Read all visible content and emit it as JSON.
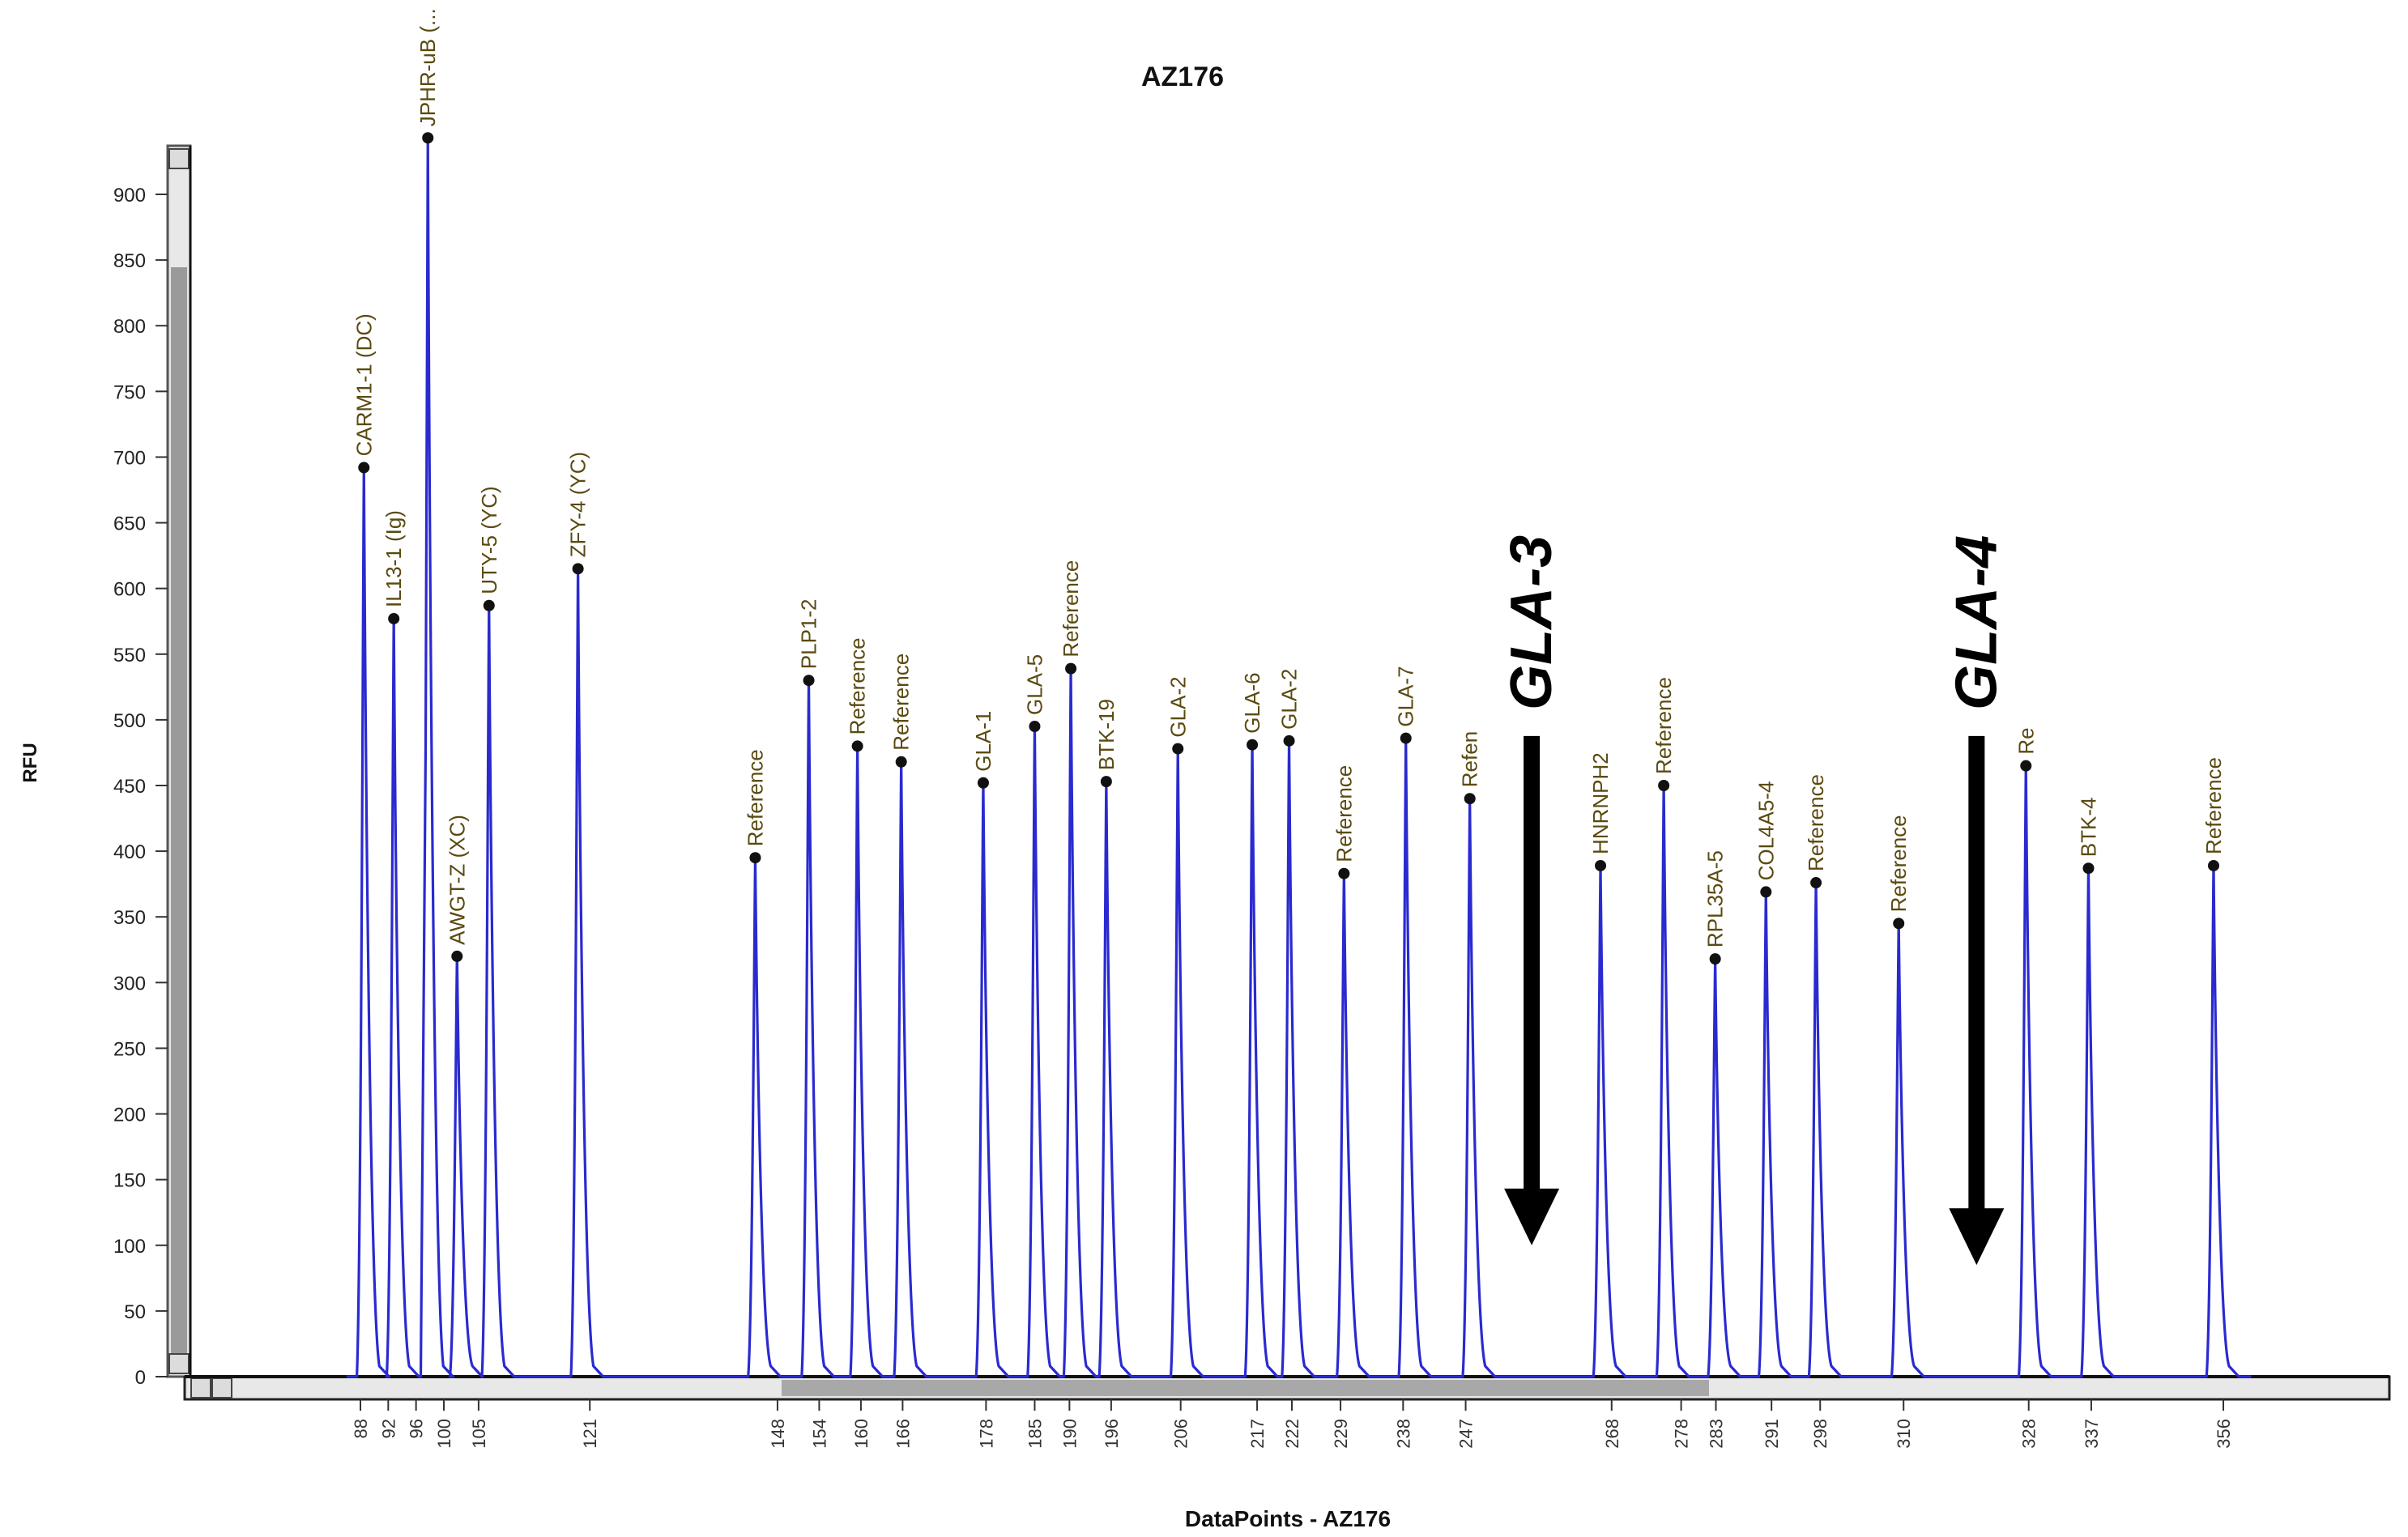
{
  "chart_data": {
    "type": "line",
    "title": "AZ176",
    "xlabel": "DataPoints - AZ176",
    "ylabel": "RFU",
    "xlim": [
      35,
      480
    ],
    "ylim": [
      0,
      945
    ],
    "y_ticks": [
      0,
      50,
      100,
      150,
      200,
      250,
      300,
      350,
      400,
      450,
      500,
      550,
      600,
      650,
      700,
      750,
      800,
      850,
      900
    ],
    "x_ticks": [
      88,
      92,
      96,
      100,
      105,
      121,
      148,
      154,
      160,
      166,
      178,
      185,
      190,
      196,
      206,
      217,
      222,
      229,
      238,
      247,
      268,
      278,
      283,
      291,
      298,
      310,
      328,
      337,
      356
    ],
    "line_color": "#2a2ad0",
    "peaks": [
      {
        "x": 88.5,
        "y": 692,
        "label": "CARM1-1 (DC)"
      },
      {
        "x": 92.8,
        "y": 577,
        "label": "IL13-1 (Ig)"
      },
      {
        "x": 97.7,
        "y": 943,
        "label": "JPHR-uB (..."
      },
      {
        "x": 101.9,
        "y": 320,
        "label": "AWGT-Z (XC)"
      },
      {
        "x": 106.5,
        "y": 587,
        "label": "UTY-5 (YC)"
      },
      {
        "x": 119.3,
        "y": 615,
        "label": "ZFY-4 (YC)"
      },
      {
        "x": 144.8,
        "y": 395,
        "label": "Reference"
      },
      {
        "x": 152.5,
        "y": 530,
        "label": "PLP1-2"
      },
      {
        "x": 159.5,
        "y": 480,
        "label": "Reference"
      },
      {
        "x": 165.8,
        "y": 468,
        "label": "Reference"
      },
      {
        "x": 177.6,
        "y": 452,
        "label": "GLA-1"
      },
      {
        "x": 185.0,
        "y": 495,
        "label": "GLA-5"
      },
      {
        "x": 190.2,
        "y": 539,
        "label": "Reference"
      },
      {
        "x": 195.3,
        "y": 453,
        "label": "BTK-19"
      },
      {
        "x": 205.6,
        "y": 478,
        "label": "GLA-2"
      },
      {
        "x": 216.3,
        "y": 481,
        "label": "GLA-6"
      },
      {
        "x": 221.6,
        "y": 484,
        "label": "GLA-2"
      },
      {
        "x": 229.5,
        "y": 383,
        "label": "Reference"
      },
      {
        "x": 238.4,
        "y": 486,
        "label": "GLA-7"
      },
      {
        "x": 247.6,
        "y": 440,
        "label": "Refen"
      },
      {
        "x": 266.4,
        "y": 389,
        "label": "HNRNPH2"
      },
      {
        "x": 275.5,
        "y": 450,
        "label": "Reference"
      },
      {
        "x": 282.9,
        "y": 318,
        "label": "RPL35A-5"
      },
      {
        "x": 290.2,
        "y": 369,
        "label": "COL4A5-4"
      },
      {
        "x": 297.4,
        "y": 376,
        "label": "Reference"
      },
      {
        "x": 309.3,
        "y": 345,
        "label": "Reference"
      },
      {
        "x": 327.6,
        "y": 465,
        "label": "Re"
      },
      {
        "x": 336.6,
        "y": 387,
        "label": "BTK-4"
      },
      {
        "x": 354.6,
        "y": 389,
        "label": "Reference"
      }
    ],
    "annotations": [
      {
        "label": "GLA-3",
        "x": 256.5,
        "arrow_from_y": 500,
        "arrow_to_y": 100
      },
      {
        "label": "GLA-4",
        "x": 320.5,
        "arrow_from_y": 500,
        "arrow_to_y": 85
      }
    ],
    "legend": "none",
    "grid": false
  }
}
